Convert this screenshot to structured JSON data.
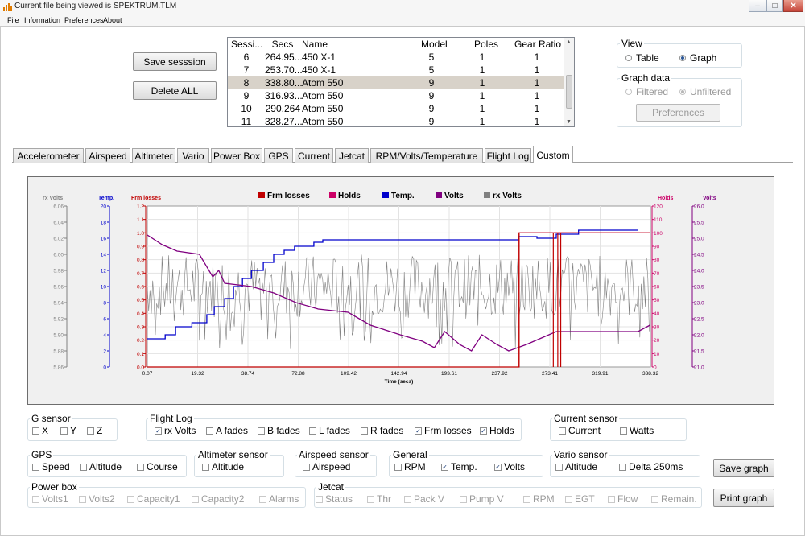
{
  "window": {
    "title": "Current file being viewed is SPEKTRUM.TLM",
    "min_label": "–",
    "max_label": "□",
    "close_label": "✕"
  },
  "menu": [
    "File",
    "Information",
    "Preferences",
    "About"
  ],
  "buttons": {
    "save_session": "Save sesssion",
    "delete_all": "Delete ALL",
    "preferences": "Preferences",
    "save_graph": "Save graph",
    "print_graph": "Print graph"
  },
  "sessions": {
    "columns": [
      "Sessi...",
      "Secs",
      "Name",
      "Model",
      "Poles",
      "Gear Ratio"
    ],
    "rows": [
      [
        "6",
        "264.95...",
        "450 X-1",
        "5",
        "1",
        "1"
      ],
      [
        "7",
        "253.70...",
        "450 X-1",
        "5",
        "1",
        "1"
      ],
      [
        "8",
        "338.80...",
        "Atom 550",
        "9",
        "1",
        "1"
      ],
      [
        "9",
        "316.93...",
        "Atom 550",
        "9",
        "1",
        "1"
      ],
      [
        "10",
        "290.264",
        "Atom 550",
        "9",
        "1",
        "1"
      ],
      [
        "11",
        "328.27...",
        "Atom 550",
        "9",
        "1",
        "1"
      ]
    ],
    "selected_row": 2
  },
  "view": {
    "legend": "View",
    "table": "Table",
    "graph": "Graph",
    "selected": "Graph"
  },
  "graph_data": {
    "legend": "Graph data",
    "filtered": "Filtered",
    "unfiltered": "Unfiltered",
    "selected": "Unfiltered"
  },
  "tabs": [
    "Accelerometer",
    "Airspeed",
    "Altimeter",
    "Vario",
    "Power Box",
    "GPS",
    "Current",
    "Jetcat",
    "RPM/Volts/Temperature",
    "Flight Log",
    "Custom"
  ],
  "active_tab": "Custom",
  "chart_data": {
    "type": "line",
    "x_label": "Time (secs)",
    "x_ticks": [
      "0.07",
      "19.32",
      "38.74",
      "72.88",
      "109.42",
      "142.94",
      "193.61",
      "237.92",
      "273.41",
      "319.91",
      "338.32"
    ],
    "legend": [
      {
        "name": "Frm losses",
        "color": "#c00000"
      },
      {
        "name": "Holds",
        "color": "#cc0066"
      },
      {
        "name": "Temp.",
        "color": "#0000cc"
      },
      {
        "name": "Volts",
        "color": "#800080"
      },
      {
        "name": "rx Volts",
        "color": "#808080"
      }
    ],
    "axes": [
      {
        "name": "rx Volts",
        "color": "#808080",
        "ticks": [
          "6.06",
          "6.04",
          "6.02",
          "6.00",
          "5.98",
          "5.96",
          "5.94",
          "5.92",
          "5.90",
          "5.88",
          "5.86"
        ],
        "range": [
          5.86,
          6.06
        ]
      },
      {
        "name": "Temp.",
        "color": "#0000cc",
        "ticks": [
          "20",
          "18",
          "16",
          "14",
          "12",
          "10",
          "8",
          "6",
          "4",
          "2",
          "0"
        ],
        "range": [
          0,
          20
        ]
      },
      {
        "name": "Frm losses",
        "color": "#c00000",
        "ticks": [
          "1.2",
          "1.1",
          "1.0",
          "0.9",
          "0.8",
          "0.7",
          "0.6",
          "0.5",
          "0.4",
          "0.3",
          "0.2",
          "0.1",
          "0.0"
        ],
        "range": [
          0,
          1.2
        ]
      },
      {
        "name": "Holds",
        "color": "#cc0066",
        "ticks": [
          "120",
          "110",
          "100",
          "90",
          "80",
          "70",
          "60",
          "50",
          "40",
          "30",
          "20",
          "10",
          "0"
        ],
        "range": [
          0,
          120
        ]
      },
      {
        "name": "Volts",
        "color": "#800080",
        "ticks": [
          "26.0",
          "25.5",
          "25.0",
          "24.5",
          "24.0",
          "23.5",
          "23.0",
          "22.5",
          "22.0",
          "21.5",
          "21.0"
        ],
        "range": [
          21,
          26
        ]
      }
    ],
    "series": [
      {
        "name": "Temp.",
        "color": "#0000cc",
        "step": true,
        "points": [
          [
            0,
            3.5
          ],
          [
            12,
            3.5
          ],
          [
            12,
            4
          ],
          [
            19,
            4
          ],
          [
            19,
            5
          ],
          [
            30,
            5
          ],
          [
            30,
            5.5
          ],
          [
            40,
            5.5
          ],
          [
            40,
            6.5
          ],
          [
            45,
            6.5
          ],
          [
            45,
            7.5
          ],
          [
            52,
            7.5
          ],
          [
            52,
            8.5
          ],
          [
            58,
            8.5
          ],
          [
            58,
            10
          ],
          [
            64,
            10
          ],
          [
            64,
            11
          ],
          [
            70,
            11
          ],
          [
            70,
            12
          ],
          [
            78,
            12
          ],
          [
            78,
            13
          ],
          [
            85,
            13
          ],
          [
            85,
            14
          ],
          [
            92,
            14
          ],
          [
            92,
            14.5
          ],
          [
            99,
            14.5
          ],
          [
            99,
            15
          ],
          [
            112,
            15
          ],
          [
            112,
            15.5
          ],
          [
            118,
            15.5
          ],
          [
            118,
            15.8
          ],
          [
            250,
            15.8
          ],
          [
            250,
            16.2
          ],
          [
            262,
            16.2
          ],
          [
            262,
            16
          ],
          [
            275,
            16
          ],
          [
            275,
            16.5
          ],
          [
            290,
            16.5
          ],
          [
            290,
            17
          ],
          [
            330,
            17
          ]
        ]
      },
      {
        "name": "Volts",
        "color": "#800080",
        "points": [
          [
            0,
            25.1
          ],
          [
            10,
            24.8
          ],
          [
            20,
            24.6
          ],
          [
            35,
            24.5
          ],
          [
            44,
            23.8
          ],
          [
            48,
            24.0
          ],
          [
            52,
            23.6
          ],
          [
            70,
            23.5
          ],
          [
            85,
            23.3
          ],
          [
            100,
            23.0
          ],
          [
            115,
            22.8
          ],
          [
            135,
            22.7
          ],
          [
            150,
            22.3
          ],
          [
            170,
            22.0
          ],
          [
            185,
            21.8
          ],
          [
            193,
            21.6
          ],
          [
            200,
            22.1
          ],
          [
            210,
            21.7
          ],
          [
            218,
            21.5
          ],
          [
            225,
            22.0
          ],
          [
            235,
            21.7
          ],
          [
            243,
            21.5
          ],
          [
            255,
            21.7
          ],
          [
            265,
            21.9
          ],
          [
            275,
            22.1
          ],
          [
            290,
            22.1
          ],
          [
            310,
            22.1
          ],
          [
            330,
            22.1
          ],
          [
            338,
            22.3
          ]
        ]
      },
      {
        "name": "Frm losses",
        "color": "#c00000",
        "step": true,
        "points": [
          [
            0,
            0
          ],
          [
            250,
            0
          ],
          [
            250,
            1.0
          ],
          [
            338,
            1.0
          ]
        ]
      },
      {
        "name": "rx Volts",
        "color": "#808080",
        "noise": true,
        "range_x": [
          0,
          338
        ],
        "band": [
          5.92,
          6.0
        ]
      }
    ],
    "spikes_x": [
      250,
      273,
      276,
      278
    ]
  },
  "groups": {
    "g_sensor": {
      "legend": "G sensor",
      "items": [
        {
          "label": "X",
          "checked": false
        },
        {
          "label": "Y",
          "checked": false
        },
        {
          "label": "Z",
          "checked": false
        }
      ]
    },
    "flight_log": {
      "legend": "Flight Log",
      "items": [
        {
          "label": "rx Volts",
          "checked": true
        },
        {
          "label": "A fades",
          "checked": false
        },
        {
          "label": "B fades",
          "checked": false
        },
        {
          "label": "L fades",
          "checked": false
        },
        {
          "label": "R fades",
          "checked": false
        },
        {
          "label": "Frm losses",
          "checked": true
        },
        {
          "label": "Holds",
          "checked": true
        }
      ]
    },
    "current_sensor": {
      "legend": "Current sensor",
      "items": [
        {
          "label": "Current",
          "checked": false
        },
        {
          "label": "Watts",
          "checked": false
        }
      ]
    },
    "gps": {
      "legend": "GPS",
      "items": [
        {
          "label": "Speed",
          "checked": false
        },
        {
          "label": "Altitude",
          "checked": false
        },
        {
          "label": "Course",
          "checked": false
        }
      ]
    },
    "altimeter_sensor": {
      "legend": "Altimeter sensor",
      "items": [
        {
          "label": "Altitude",
          "checked": false
        }
      ]
    },
    "airspeed_sensor": {
      "legend": "Airspeed sensor",
      "items": [
        {
          "label": "Airspeed",
          "checked": false
        }
      ]
    },
    "general": {
      "legend": "General",
      "items": [
        {
          "label": "RPM",
          "checked": false
        },
        {
          "label": "Temp.",
          "checked": true
        },
        {
          "label": "Volts",
          "checked": true
        }
      ]
    },
    "vario_sensor": {
      "legend": "Vario sensor",
      "items": [
        {
          "label": "Altitude",
          "checked": false
        },
        {
          "label": "Delta 250ms",
          "checked": false
        }
      ]
    },
    "power_box": {
      "legend": "Power box",
      "items": [
        {
          "label": "Volts1",
          "checked": false
        },
        {
          "label": "Volts2",
          "checked": false
        },
        {
          "label": "Capacity1",
          "checked": false
        },
        {
          "label": "Capacity2",
          "checked": false
        },
        {
          "label": "Alarms",
          "checked": false
        }
      ]
    },
    "jetcat": {
      "legend": "Jetcat",
      "items": [
        {
          "label": "Status",
          "checked": false
        },
        {
          "label": "Thr",
          "checked": false
        },
        {
          "label": "Pack V",
          "checked": false
        },
        {
          "label": "Pump V",
          "checked": false
        },
        {
          "label": "RPM",
          "checked": false
        },
        {
          "label": "EGT",
          "checked": false
        },
        {
          "label": "Flow",
          "checked": false
        },
        {
          "label": "Remain.",
          "checked": false
        }
      ]
    }
  }
}
